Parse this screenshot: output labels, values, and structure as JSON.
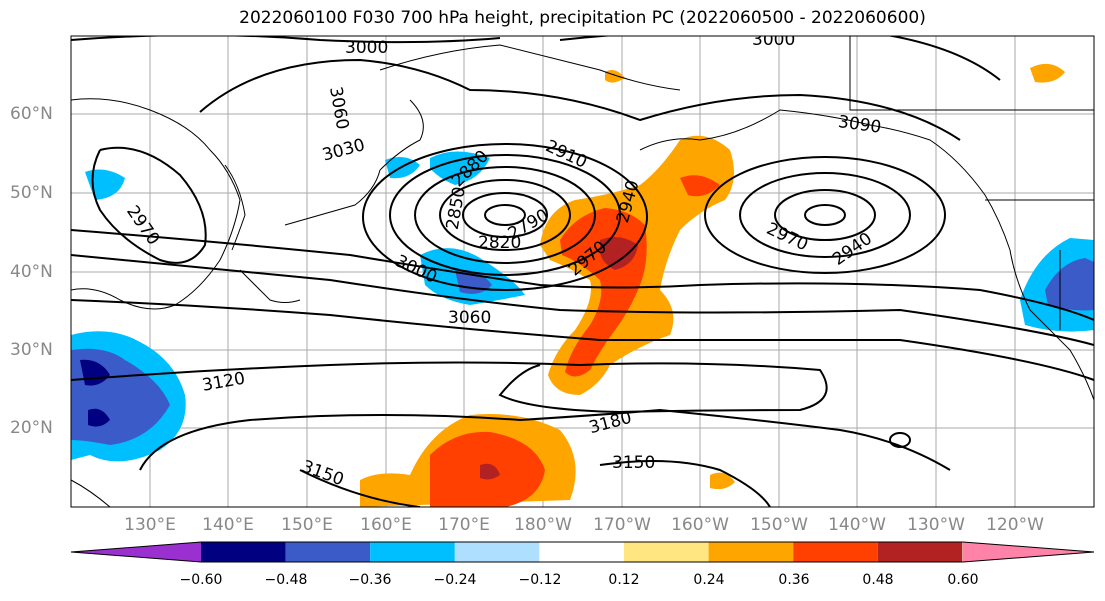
{
  "title": "2022060100 F030 700 hPa height, precipitation PC (2022060500 - 2022060600)",
  "lat_labels": [
    "60°N",
    "50°N",
    "40°N",
    "30°N",
    "20°N"
  ],
  "lon_labels": [
    "130°E",
    "140°E",
    "150°E",
    "160°E",
    "170°E",
    "180°W",
    "170°W",
    "160°W",
    "150°W",
    "140°W",
    "130°W",
    "120°W"
  ],
  "colorbar": {
    "colors": [
      "#9b30d0",
      "#000080",
      "#3a5bc8",
      "#00bfff",
      "#afdfff",
      "#ffffff",
      "#ffe680",
      "#ffa500",
      "#ff4000",
      "#b22222",
      "#ff82a9"
    ],
    "ticks": [
      "−0.60",
      "−0.48",
      "−0.36",
      "−0.24",
      "−0.12",
      "0.12",
      "0.24",
      "0.36",
      "0.48",
      "0.60"
    ]
  },
  "contour_labels": [
    "3000",
    "3000",
    "3060",
    "3030",
    "2910",
    "2880",
    "2850",
    "2790",
    "2820",
    "2940",
    "2970",
    "3090",
    "2970",
    "2940",
    "2970",
    "3000",
    "3060",
    "3120",
    "3180",
    "3150",
    "3150"
  ]
}
